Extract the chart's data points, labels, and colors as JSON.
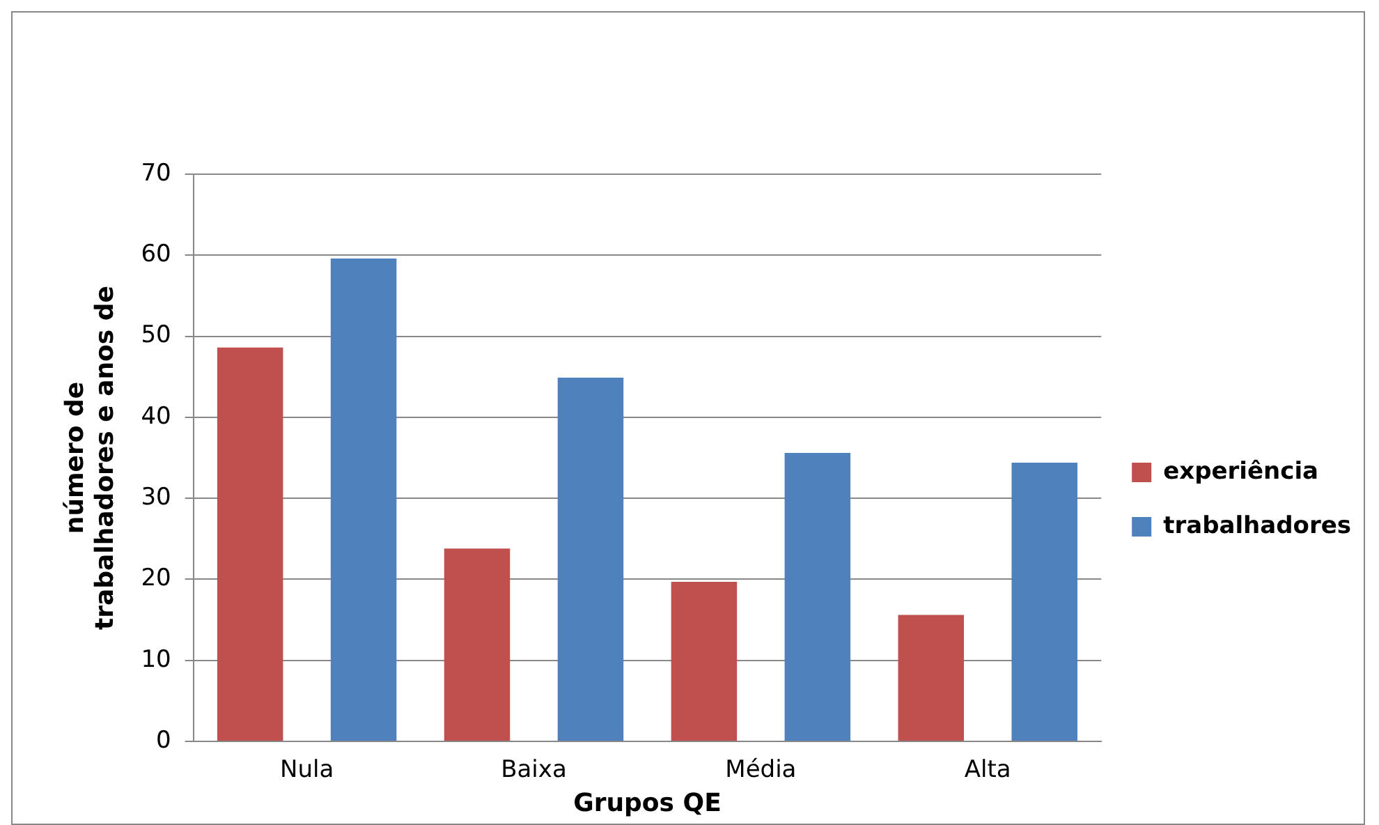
{
  "chart_data": {
    "type": "bar",
    "xlabel": "Grupos QE",
    "ylabel": "número de\ntrabalhadores e anos de",
    "categories": [
      "Nula",
      "Baixa",
      "Média",
      "Alta"
    ],
    "series": [
      {
        "name": "experiência",
        "color": "#c0504d",
        "values": [
          48.6,
          23.8,
          19.7,
          15.6
        ]
      },
      {
        "name": "trabalhadores",
        "color": "#4f81bd",
        "values": [
          59.6,
          44.9,
          35.6,
          34.4
        ]
      }
    ],
    "ylim": [
      0,
      70
    ],
    "yticks": [
      0,
      10,
      20,
      30,
      40,
      50,
      60,
      70
    ],
    "grid": "y",
    "legend": "right"
  }
}
